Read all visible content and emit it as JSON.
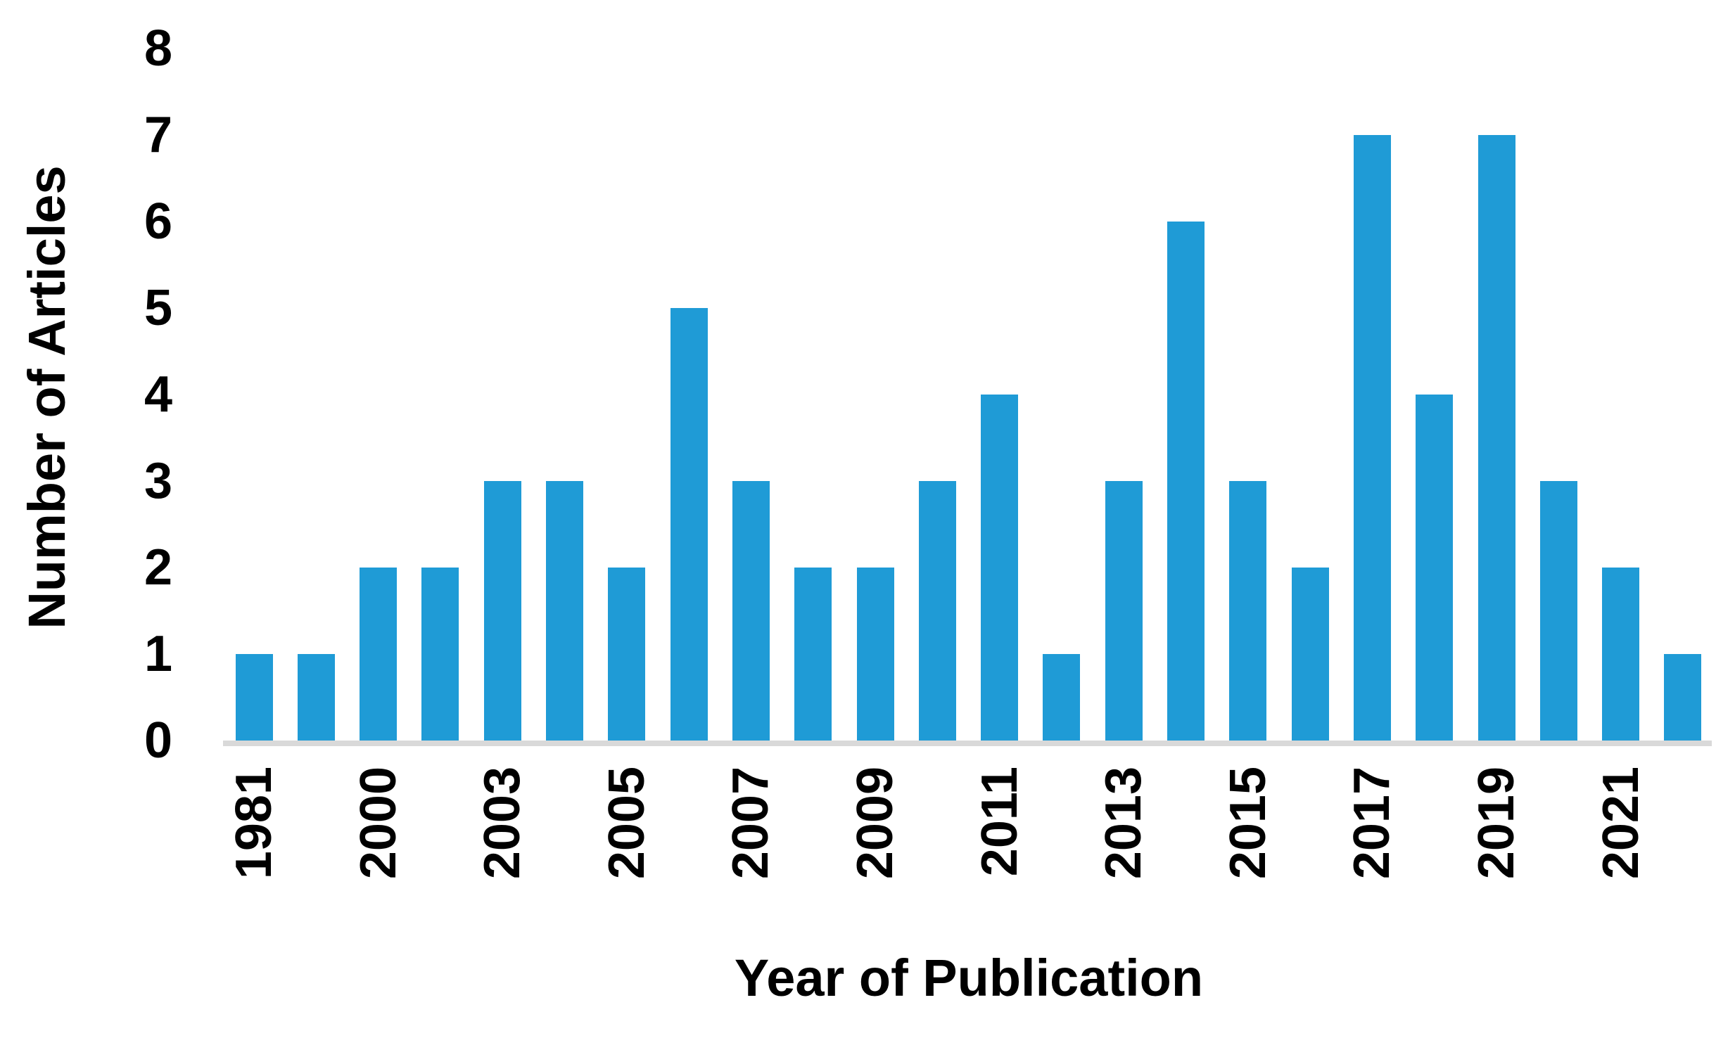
{
  "chart_data": {
    "type": "bar",
    "title": "",
    "xlabel": "Year of Publication",
    "ylabel": "Number of Articles",
    "ylim": [
      0,
      8
    ],
    "y_ticks": [
      0,
      1,
      2,
      3,
      4,
      5,
      6,
      7,
      8
    ],
    "grid": "off",
    "legend": "none",
    "categories": [
      "1981",
      "",
      "2000",
      "",
      "2003",
      "",
      "2005",
      "",
      "2007",
      "",
      "2009",
      "",
      "2011",
      "",
      "2013",
      "",
      "2015",
      "",
      "2017",
      "",
      "2019",
      "",
      "2021",
      ""
    ],
    "values": [
      1,
      1,
      2,
      2,
      3,
      3,
      2,
      5,
      3,
      2,
      2,
      3,
      4,
      1,
      3,
      6,
      3,
      2,
      7,
      4,
      7,
      3,
      2,
      1
    ],
    "x_tick_labels_shown": [
      "1981",
      "2000",
      "2003",
      "2005",
      "2007",
      "2009",
      "2011",
      "2013",
      "2015",
      "2017",
      "2019",
      "2021"
    ],
    "x_tick_rotation_degrees": 90,
    "colors": {
      "bar": "#1F9BD6",
      "axis_line": "#D9D9D9",
      "text": "#000000",
      "background": "#FFFFFF"
    }
  }
}
